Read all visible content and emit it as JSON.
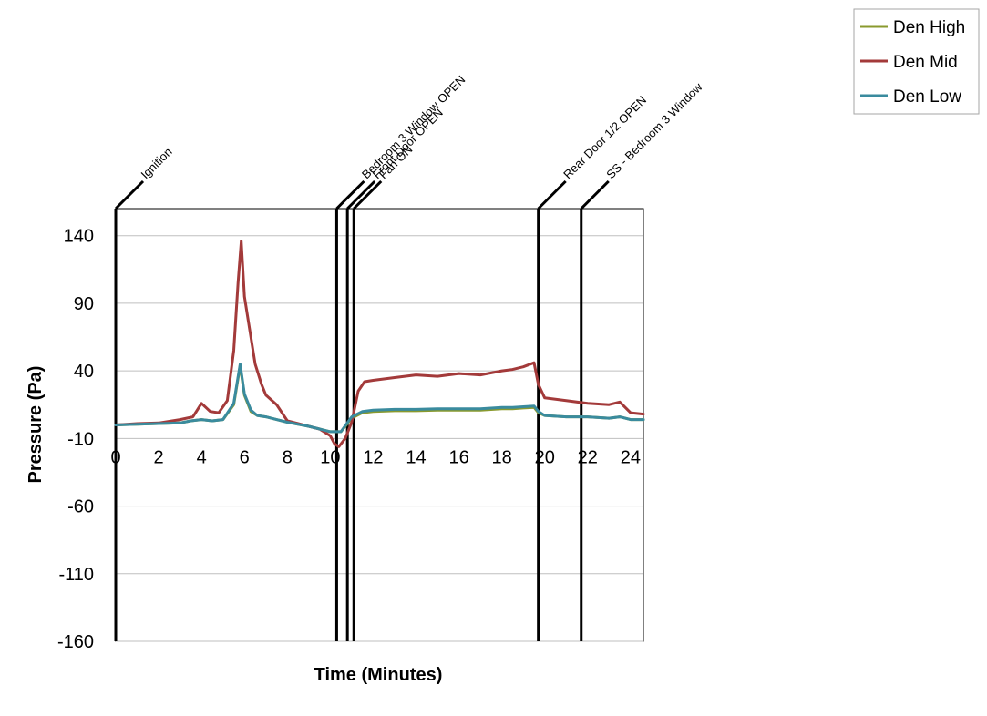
{
  "chart_data": {
    "type": "line",
    "title": "",
    "xlabel": "Time (Minutes)",
    "ylabel": "Pressure (Pa)",
    "xlim": [
      0,
      24.6
    ],
    "ylim": [
      -160,
      160
    ],
    "xticks": [
      0,
      2,
      4,
      6,
      8,
      10,
      12,
      14,
      16,
      18,
      20,
      22,
      24
    ],
    "yticks": [
      140,
      90,
      40,
      -10,
      -60,
      -110,
      -160
    ],
    "grid": "horizontal",
    "legend": "top-right",
    "events": [
      {
        "time": 0,
        "label": "Ignition"
      },
      {
        "time": 10.3,
        "label": "Bedroom 3 Window OPEN"
      },
      {
        "time": 10.8,
        "label": "Front Door OPEN"
      },
      {
        "time": 11.1,
        "label": "Fan ON"
      },
      {
        "time": 19.7,
        "label": "Rear Door 1/2 OPEN"
      },
      {
        "time": 21.7,
        "label": "SS - Bedroom 3 Window"
      }
    ],
    "series": [
      {
        "name": "Den High",
        "color": "#8a9a2e",
        "x": [
          0,
          1,
          2,
          3,
          3.5,
          4,
          4.5,
          5,
          5.5,
          5.8,
          6,
          6.3,
          6.6,
          7,
          7.5,
          8,
          9,
          10,
          10.5,
          11,
          11.5,
          12,
          13,
          14,
          15,
          16,
          17,
          18,
          18.5,
          19,
          19.5,
          19.7,
          20,
          21,
          22,
          23,
          23.5,
          24,
          24.6
        ],
        "y": [
          0,
          0.5,
          1,
          1.5,
          3,
          4,
          3,
          4,
          15,
          44,
          22,
          10,
          7,
          6,
          4,
          2,
          -1,
          -5,
          -5,
          5,
          9,
          10,
          10.5,
          10.5,
          11,
          11,
          11,
          12,
          12,
          12.5,
          13,
          9,
          7,
          6,
          6,
          5,
          6,
          4,
          4
        ]
      },
      {
        "name": "Den Mid",
        "color": "#a33a3a",
        "x": [
          0,
          1,
          2,
          3,
          3.6,
          4,
          4.4,
          4.8,
          5.2,
          5.5,
          5.7,
          5.85,
          6,
          6.2,
          6.5,
          6.8,
          7,
          7.5,
          8,
          8.5,
          9,
          9.5,
          10,
          10.2,
          10.4,
          10.7,
          11,
          11.3,
          11.6,
          12,
          13,
          14,
          15,
          16,
          17,
          18,
          18.5,
          19,
          19.5,
          19.7,
          20,
          21,
          22,
          23,
          23.5,
          24,
          24.6
        ],
        "y": [
          0,
          1,
          1.5,
          4,
          6,
          16,
          10,
          9,
          18,
          55,
          105,
          136,
          95,
          75,
          45,
          30,
          22,
          15,
          3,
          1,
          -1,
          -3,
          -8,
          -14,
          -16,
          -10,
          2,
          25,
          32,
          33,
          35,
          37,
          36,
          38,
          37,
          40,
          41,
          43,
          46,
          30,
          20,
          18,
          16,
          15,
          17,
          9,
          8
        ]
      },
      {
        "name": "Den Low",
        "color": "#3a8b9e",
        "x": [
          0,
          1,
          2,
          3,
          3.5,
          4,
          4.5,
          5,
          5.5,
          5.8,
          6,
          6.3,
          6.6,
          7,
          7.5,
          8,
          9,
          10,
          10.5,
          11,
          11.5,
          12,
          13,
          14,
          15,
          16,
          17,
          18,
          18.5,
          19,
          19.5,
          19.7,
          20,
          21,
          22,
          23,
          23.5,
          24,
          24.6
        ],
        "y": [
          0,
          0.5,
          1,
          1.5,
          3,
          4,
          3,
          4,
          16,
          45,
          23,
          11,
          7,
          6,
          4,
          2,
          -1,
          -5,
          -5,
          6,
          10,
          11,
          11.5,
          11.5,
          12,
          12,
          12,
          13,
          13,
          13.5,
          14,
          10,
          7,
          6,
          6,
          5,
          6,
          4,
          4
        ]
      }
    ]
  }
}
